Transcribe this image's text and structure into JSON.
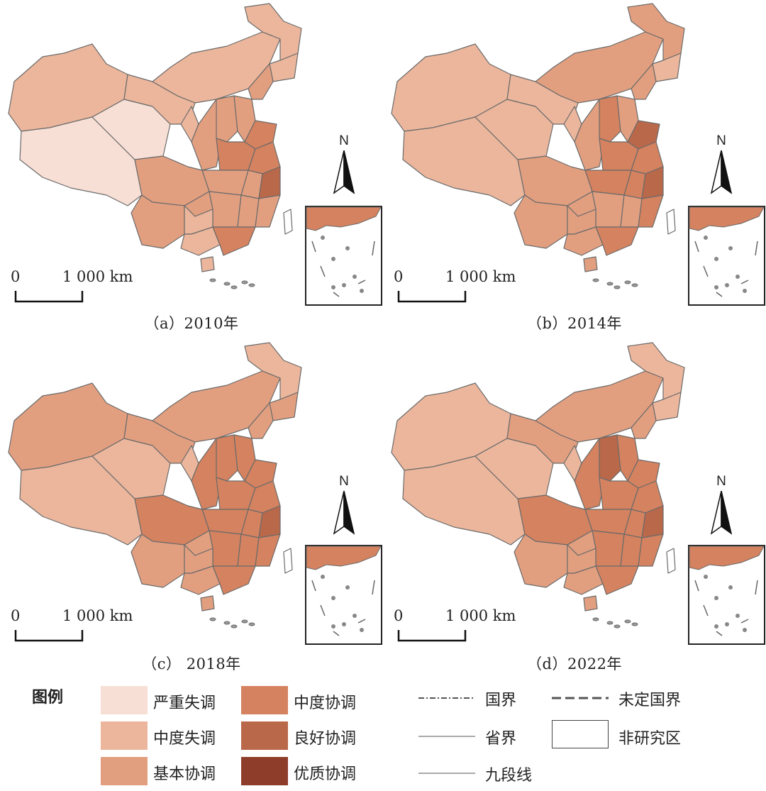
{
  "panels": [
    {
      "id": "a",
      "caption": "（a）2010年",
      "scale_zero": "0",
      "scale_label": "1 000 km",
      "north_label": "N"
    },
    {
      "id": "b",
      "caption": "（b）2014年",
      "scale_zero": "0",
      "scale_label": "1 000 km",
      "north_label": "N"
    },
    {
      "id": "c",
      "caption": "（c） 2018年",
      "scale_zero": "0",
      "scale_label": "1 000 km",
      "north_label": "N"
    },
    {
      "id": "d",
      "caption": "（d）2022年",
      "scale_zero": "0",
      "scale_label": "1 000 km",
      "north_label": "N"
    }
  ],
  "legend": {
    "title": "图例",
    "classes": [
      {
        "label": "严重失调",
        "color": "#f7dfd5"
      },
      {
        "label": "中度失调",
        "color": "#ebb69c"
      },
      {
        "label": "基本协调",
        "color": "#e29f80"
      },
      {
        "label": "中度协调",
        "color": "#d4825f"
      },
      {
        "label": "良好协调",
        "color": "#b9684a"
      },
      {
        "label": "优质协调",
        "color": "#8f3d2b"
      }
    ],
    "lines": [
      {
        "label": "国界",
        "style": "dash-dot"
      },
      {
        "label": "未定国界",
        "style": "dashed"
      },
      {
        "label": "省界",
        "style": "solid-thin"
      },
      {
        "label": "非研究区",
        "style": "box"
      },
      {
        "label": "九段线",
        "style": "solid-thin"
      }
    ]
  },
  "colors": {
    "boundary": "#6b6b6b",
    "frame": "#333333"
  }
}
